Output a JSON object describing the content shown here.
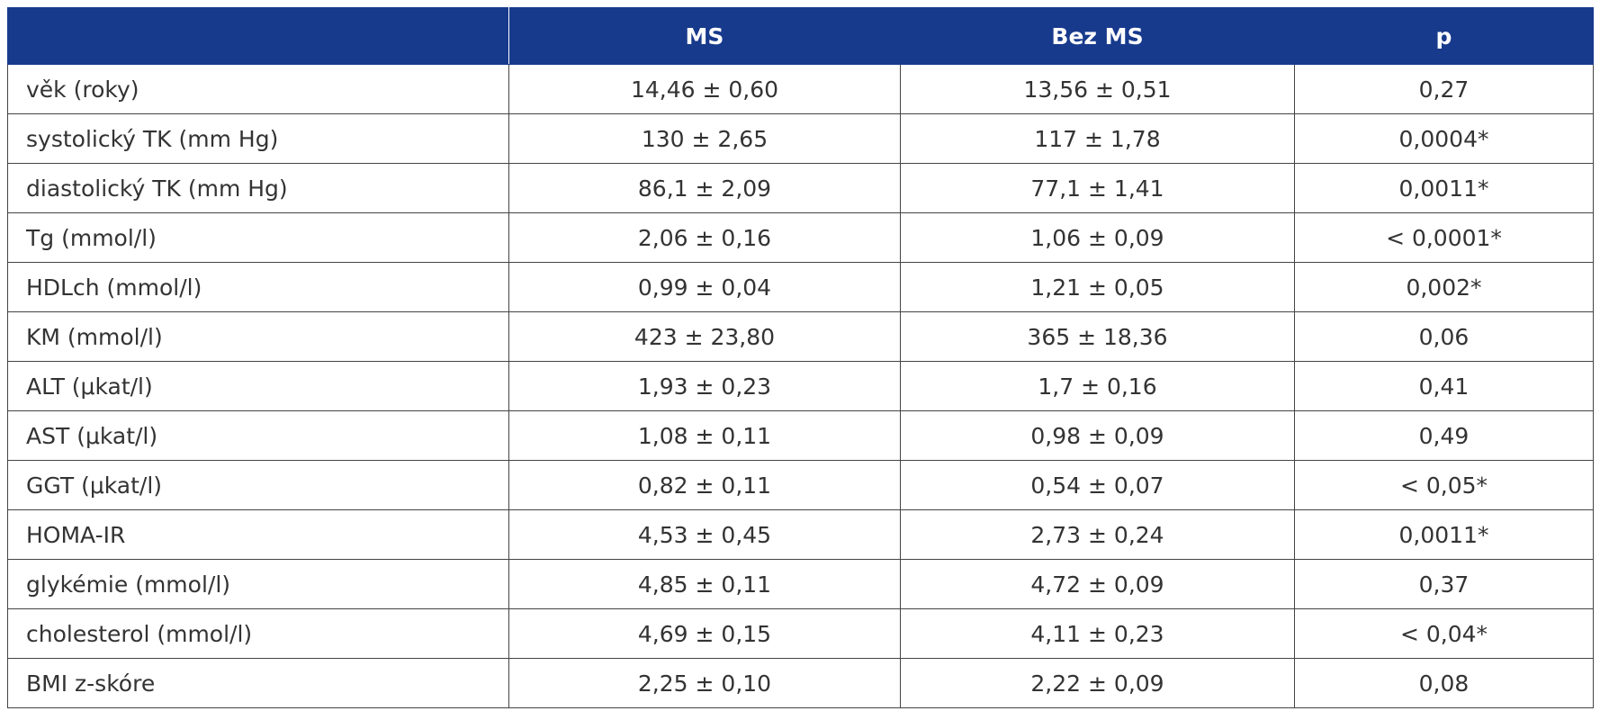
{
  "table": {
    "header": [
      "",
      "MS",
      "Bez MS",
      "p"
    ],
    "rows": [
      [
        "věk (roky)",
        "14,46 ± 0,60",
        "13,56 ± 0,51",
        "0,27"
      ],
      [
        "systolický TK (mm Hg)",
        "130 ± 2,65",
        "117 ± 1,78",
        "0,0004*"
      ],
      [
        "diastolický TK (mm Hg)",
        "86,1 ± 2,09",
        "77,1 ± 1,41",
        "0,0011*"
      ],
      [
        "Tg (mmol/l)",
        "2,06 ± 0,16",
        "1,06 ± 0,09",
        "< 0,0001*"
      ],
      [
        "HDLch (mmol/l)",
        "0,99 ± 0,04",
        "1,21 ± 0,05",
        "0,002*"
      ],
      [
        "KM (mmol/l)",
        "423 ± 23,80",
        "365 ± 18,36",
        "0,06"
      ],
      [
        "ALT (μkat/l)",
        "1,93 ± 0,23",
        "1,7 ± 0,16",
        "0,41"
      ],
      [
        "AST (μkat/l)",
        "1,08 ± 0,11",
        "0,98 ± 0,09",
        "0,49"
      ],
      [
        "GGT (μkat/l)",
        "0,82 ± 0,11",
        "0,54 ± 0,07",
        "< 0,05*"
      ],
      [
        "HOMA-IR",
        "4,53 ± 0,45",
        "2,73 ± 0,24",
        "0,0011*"
      ],
      [
        "glykémie (mmol/l)",
        "4,85 ± 0,11",
        "4,72 ± 0,09",
        "0,37"
      ],
      [
        "cholesterol (mmol/l)",
        "4,69 ± 0,15",
        "4,11 ± 0,23",
        "< 0,04*"
      ],
      [
        "BMI z-skóre",
        "2,25 ± 0,10",
        "2,22 ± 0,09",
        "0,08"
      ]
    ]
  }
}
